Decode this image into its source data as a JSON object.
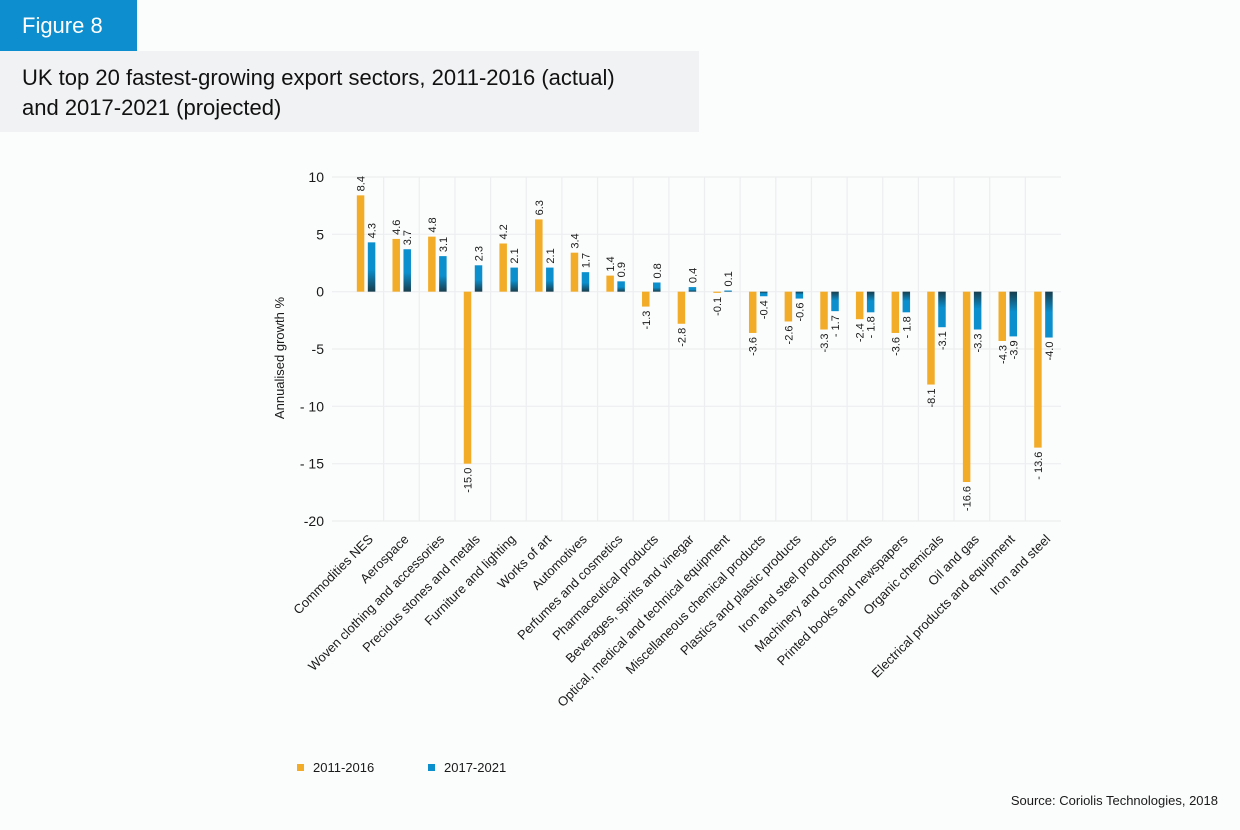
{
  "figure_label": "Figure 8",
  "title_lines": [
    "UK top 20 fastest-growing export sectors, 2011-2016 (actual)",
    "and 2017-2021 (projected)"
  ],
  "source": "Source: Coriolis Technologies, 2018",
  "colors": {
    "series_2011_2016": "#f2ac28",
    "series_2017_2021": "#0b8fcd",
    "badge": "#0d8ecf",
    "title_bg": "#f1f2f4",
    "grid": "#eceef0"
  },
  "chart_data": {
    "type": "bar",
    "title": "UK top 20 fastest-growing export sectors, 2011-2016 (actual) and 2017-2021 (projected)",
    "xlabel": "",
    "ylabel": "Annualised growth %",
    "ylim": [
      -20,
      10
    ],
    "yticks": [
      10,
      5,
      0,
      -5,
      -10,
      -15,
      -20
    ],
    "ytick_labels": [
      "10",
      "5",
      "0",
      "-5",
      "- 10",
      "- 15",
      "-20"
    ],
    "grid": true,
    "legend_position": "bottom-left",
    "categories": [
      "Commodities NES",
      "Aerospace",
      "Woven clothing and accessories",
      "Precious stones and metals",
      "Furniture and lighting",
      "Works of art",
      "Automotives",
      "Perfumes and cosmetics",
      "Pharmaceutical products",
      "Beverages, spirits and vinegar",
      "Optical, medical and technical equipment",
      "Miscellaneous chemical products",
      "Plastics and plastic products",
      "Iron and steel products",
      "Machinery and components",
      "Printed books and newspapers",
      "Organic chemicals",
      "Oil and gas",
      "Electrical products and equipment",
      "Iron and steel"
    ],
    "series": [
      {
        "name": "2011-2016",
        "values": [
          8.4,
          4.6,
          4.8,
          -15.0,
          4.2,
          6.3,
          3.4,
          1.4,
          -1.3,
          -2.8,
          -0.1,
          -3.6,
          -2.6,
          -3.3,
          -2.4,
          -3.6,
          -8.1,
          -16.6,
          -4.3,
          -13.6
        ],
        "labels": [
          "8.4",
          "4.6",
          "4.8",
          "-15.0",
          "4.2",
          "6.3",
          "3.4",
          "1.4",
          "-1.3",
          "-2.8",
          "-0.1",
          "-3.6",
          "-2.6",
          "-3.3",
          "-2.4",
          "-3.6",
          "-8.1",
          "-16.6",
          "-4.3",
          "- 13.6"
        ]
      },
      {
        "name": "2017-2021",
        "values": [
          4.3,
          3.7,
          3.1,
          2.3,
          2.1,
          2.1,
          1.7,
          0.9,
          0.8,
          0.4,
          0.1,
          -0.4,
          -0.6,
          -1.7,
          -1.8,
          -1.8,
          -3.1,
          -3.3,
          -3.9,
          -4.0
        ],
        "labels": [
          "4.3",
          "3.7",
          "3.1",
          "2.3",
          "2.1",
          "2.1",
          "1.7",
          "0.9",
          "0.8",
          "0.4",
          "0.1",
          "-0.4",
          "-0.6",
          "- 1.7",
          "- 1.8",
          "- 1.8",
          "-3.1",
          "-3.3",
          "-3.9",
          "-4.0"
        ]
      }
    ]
  }
}
